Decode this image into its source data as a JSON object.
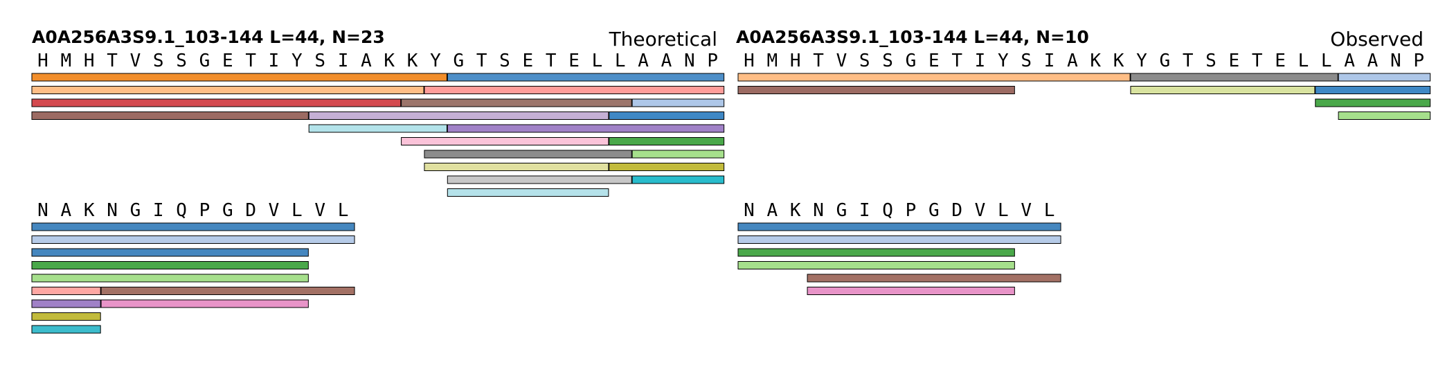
{
  "chart_data": [
    {
      "type": "peptide_coverage",
      "title": "A0A256A3S9.1_103-144  L=44, N=23",
      "label": "Theoretical",
      "sequence_lines": [
        "HMHTVSSGETIYSIAKKYGTSETELLAANP",
        "NAKNGIQPGDVLVL"
      ],
      "segments": [
        [
          {
            "start": 0,
            "end": 17,
            "row": 0,
            "color": "#f28e2b"
          },
          {
            "start": 18,
            "end": 29,
            "row": 0,
            "color": "#4e8fc8"
          },
          {
            "start": 0,
            "end": 16,
            "row": 1,
            "color": "#ffbe86"
          },
          {
            "start": 17,
            "end": 29,
            "row": 1,
            "color": "#ff9d9a"
          },
          {
            "start": 0,
            "end": 15,
            "row": 2,
            "color": "#d44a4f"
          },
          {
            "start": 16,
            "end": 25,
            "row": 2,
            "color": "#9c756b"
          },
          {
            "start": 26,
            "end": 29,
            "row": 2,
            "color": "#aec7e8"
          },
          {
            "start": 0,
            "end": 11,
            "row": 3,
            "color": "#9c6b63"
          },
          {
            "start": 12,
            "end": 24,
            "row": 3,
            "color": "#c5b0d5"
          },
          {
            "start": 25,
            "end": 29,
            "row": 3,
            "color": "#3f88c5"
          },
          {
            "start": 12,
            "end": 17,
            "row": 4,
            "color": "#b3e3ea"
          },
          {
            "start": 18,
            "end": 29,
            "row": 4,
            "color": "#a081c7"
          },
          {
            "start": 16,
            "end": 24,
            "row": 5,
            "color": "#fbc3d9"
          },
          {
            "start": 25,
            "end": 29,
            "row": 5,
            "color": "#4aa84a"
          },
          {
            "start": 17,
            "end": 25,
            "row": 6,
            "color": "#8c8c8c"
          },
          {
            "start": 26,
            "end": 29,
            "row": 6,
            "color": "#a6e08c"
          },
          {
            "start": 17,
            "end": 24,
            "row": 7,
            "color": "#e0e0a0"
          },
          {
            "start": 25,
            "end": 29,
            "row": 7,
            "color": "#c2bb3c"
          },
          {
            "start": 18,
            "end": 25,
            "row": 8,
            "color": "#c7c7c7"
          },
          {
            "start": 26,
            "end": 29,
            "row": 8,
            "color": "#29bccc"
          },
          {
            "start": 18,
            "end": 24,
            "row": 9,
            "color": "#b5e2ea"
          }
        ],
        [
          {
            "start": 0,
            "end": 13,
            "row": 0,
            "color": "#4587bf"
          },
          {
            "start": 0,
            "end": 13,
            "row": 1,
            "color": "#b6cbe8"
          },
          {
            "start": 0,
            "end": 11,
            "row": 2,
            "color": "#4587bf"
          },
          {
            "start": 0,
            "end": 11,
            "row": 3,
            "color": "#4aa84a"
          },
          {
            "start": 0,
            "end": 11,
            "row": 4,
            "color": "#a6e08c"
          },
          {
            "start": 0,
            "end": 2,
            "row": 5,
            "color": "#ffa7a3"
          },
          {
            "start": 3,
            "end": 13,
            "row": 5,
            "color": "#a37165"
          },
          {
            "start": 0,
            "end": 2,
            "row": 6,
            "color": "#a081c7"
          },
          {
            "start": 3,
            "end": 11,
            "row": 6,
            "color": "#e894c8"
          },
          {
            "start": 0,
            "end": 2,
            "row": 7,
            "color": "#c2bb3c"
          },
          {
            "start": 0,
            "end": 2,
            "row": 8,
            "color": "#3cbccc"
          }
        ]
      ]
    },
    {
      "type": "peptide_coverage",
      "title": "A0A256A3S9.1_103-144  L=44, N=10",
      "label": "Observed",
      "sequence_lines": [
        "HMHTVSSGETIYSIAKKYGTSETELLAANP",
        "NAKNGIQPGDVLVL"
      ],
      "segments": [
        [
          {
            "start": 0,
            "end": 16,
            "row": 0,
            "color": "#ffbe86"
          },
          {
            "start": 17,
            "end": 25,
            "row": 0,
            "color": "#8c8c8c"
          },
          {
            "start": 26,
            "end": 29,
            "row": 0,
            "color": "#aec7e8"
          },
          {
            "start": 0,
            "end": 11,
            "row": 1,
            "color": "#9c6b63"
          },
          {
            "start": 17,
            "end": 24,
            "row": 1,
            "color": "#d9e3a0"
          },
          {
            "start": 25,
            "end": 29,
            "row": 1,
            "color": "#3f88c5"
          },
          {
            "start": 25,
            "end": 29,
            "row": 2,
            "color": "#4aa84a"
          },
          {
            "start": 26,
            "end": 29,
            "row": 3,
            "color": "#a6e08c"
          }
        ],
        [
          {
            "start": 0,
            "end": 13,
            "row": 0,
            "color": "#4587bf"
          },
          {
            "start": 0,
            "end": 13,
            "row": 1,
            "color": "#b6cbe8"
          },
          {
            "start": 0,
            "end": 11,
            "row": 2,
            "color": "#4aa84a"
          },
          {
            "start": 0,
            "end": 11,
            "row": 3,
            "color": "#a6e08c"
          },
          {
            "start": 3,
            "end": 13,
            "row": 4,
            "color": "#a37165"
          },
          {
            "start": 3,
            "end": 11,
            "row": 5,
            "color": "#e894c8"
          }
        ]
      ]
    }
  ]
}
